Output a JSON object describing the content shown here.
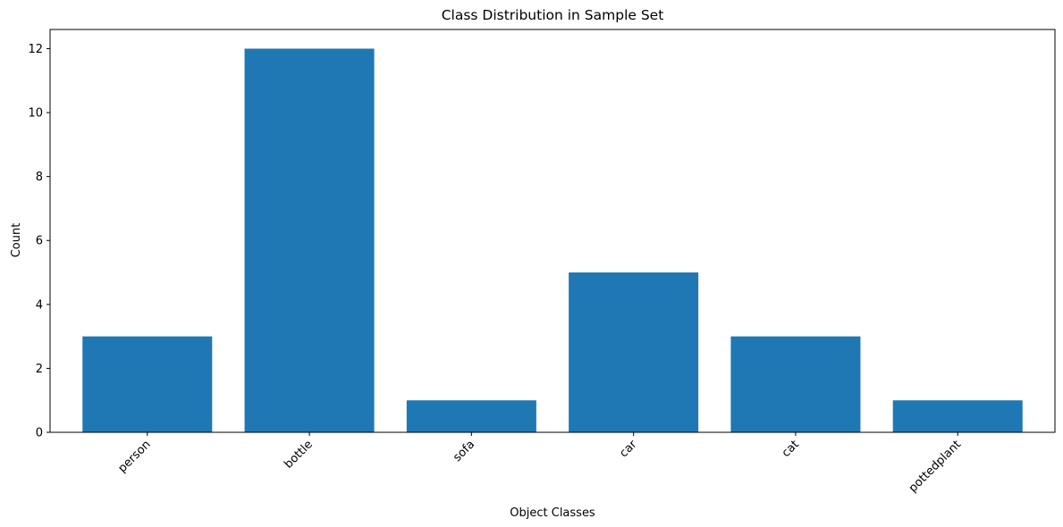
{
  "chart_data": {
    "type": "bar",
    "title": "Class Distribution in Sample Set",
    "xlabel": "Object Classes",
    "ylabel": "Count",
    "categories": [
      "person",
      "bottle",
      "sofa",
      "car",
      "cat",
      "pottedplant"
    ],
    "values": [
      3,
      12,
      1,
      5,
      3,
      1
    ],
    "ylim": [
      0,
      12.6
    ],
    "yticks": [
      0,
      2,
      4,
      6,
      8,
      10,
      12
    ],
    "grid": false,
    "legend": "none",
    "bar_color": "#1f77b4",
    "xtick_rotation_deg": 45
  }
}
